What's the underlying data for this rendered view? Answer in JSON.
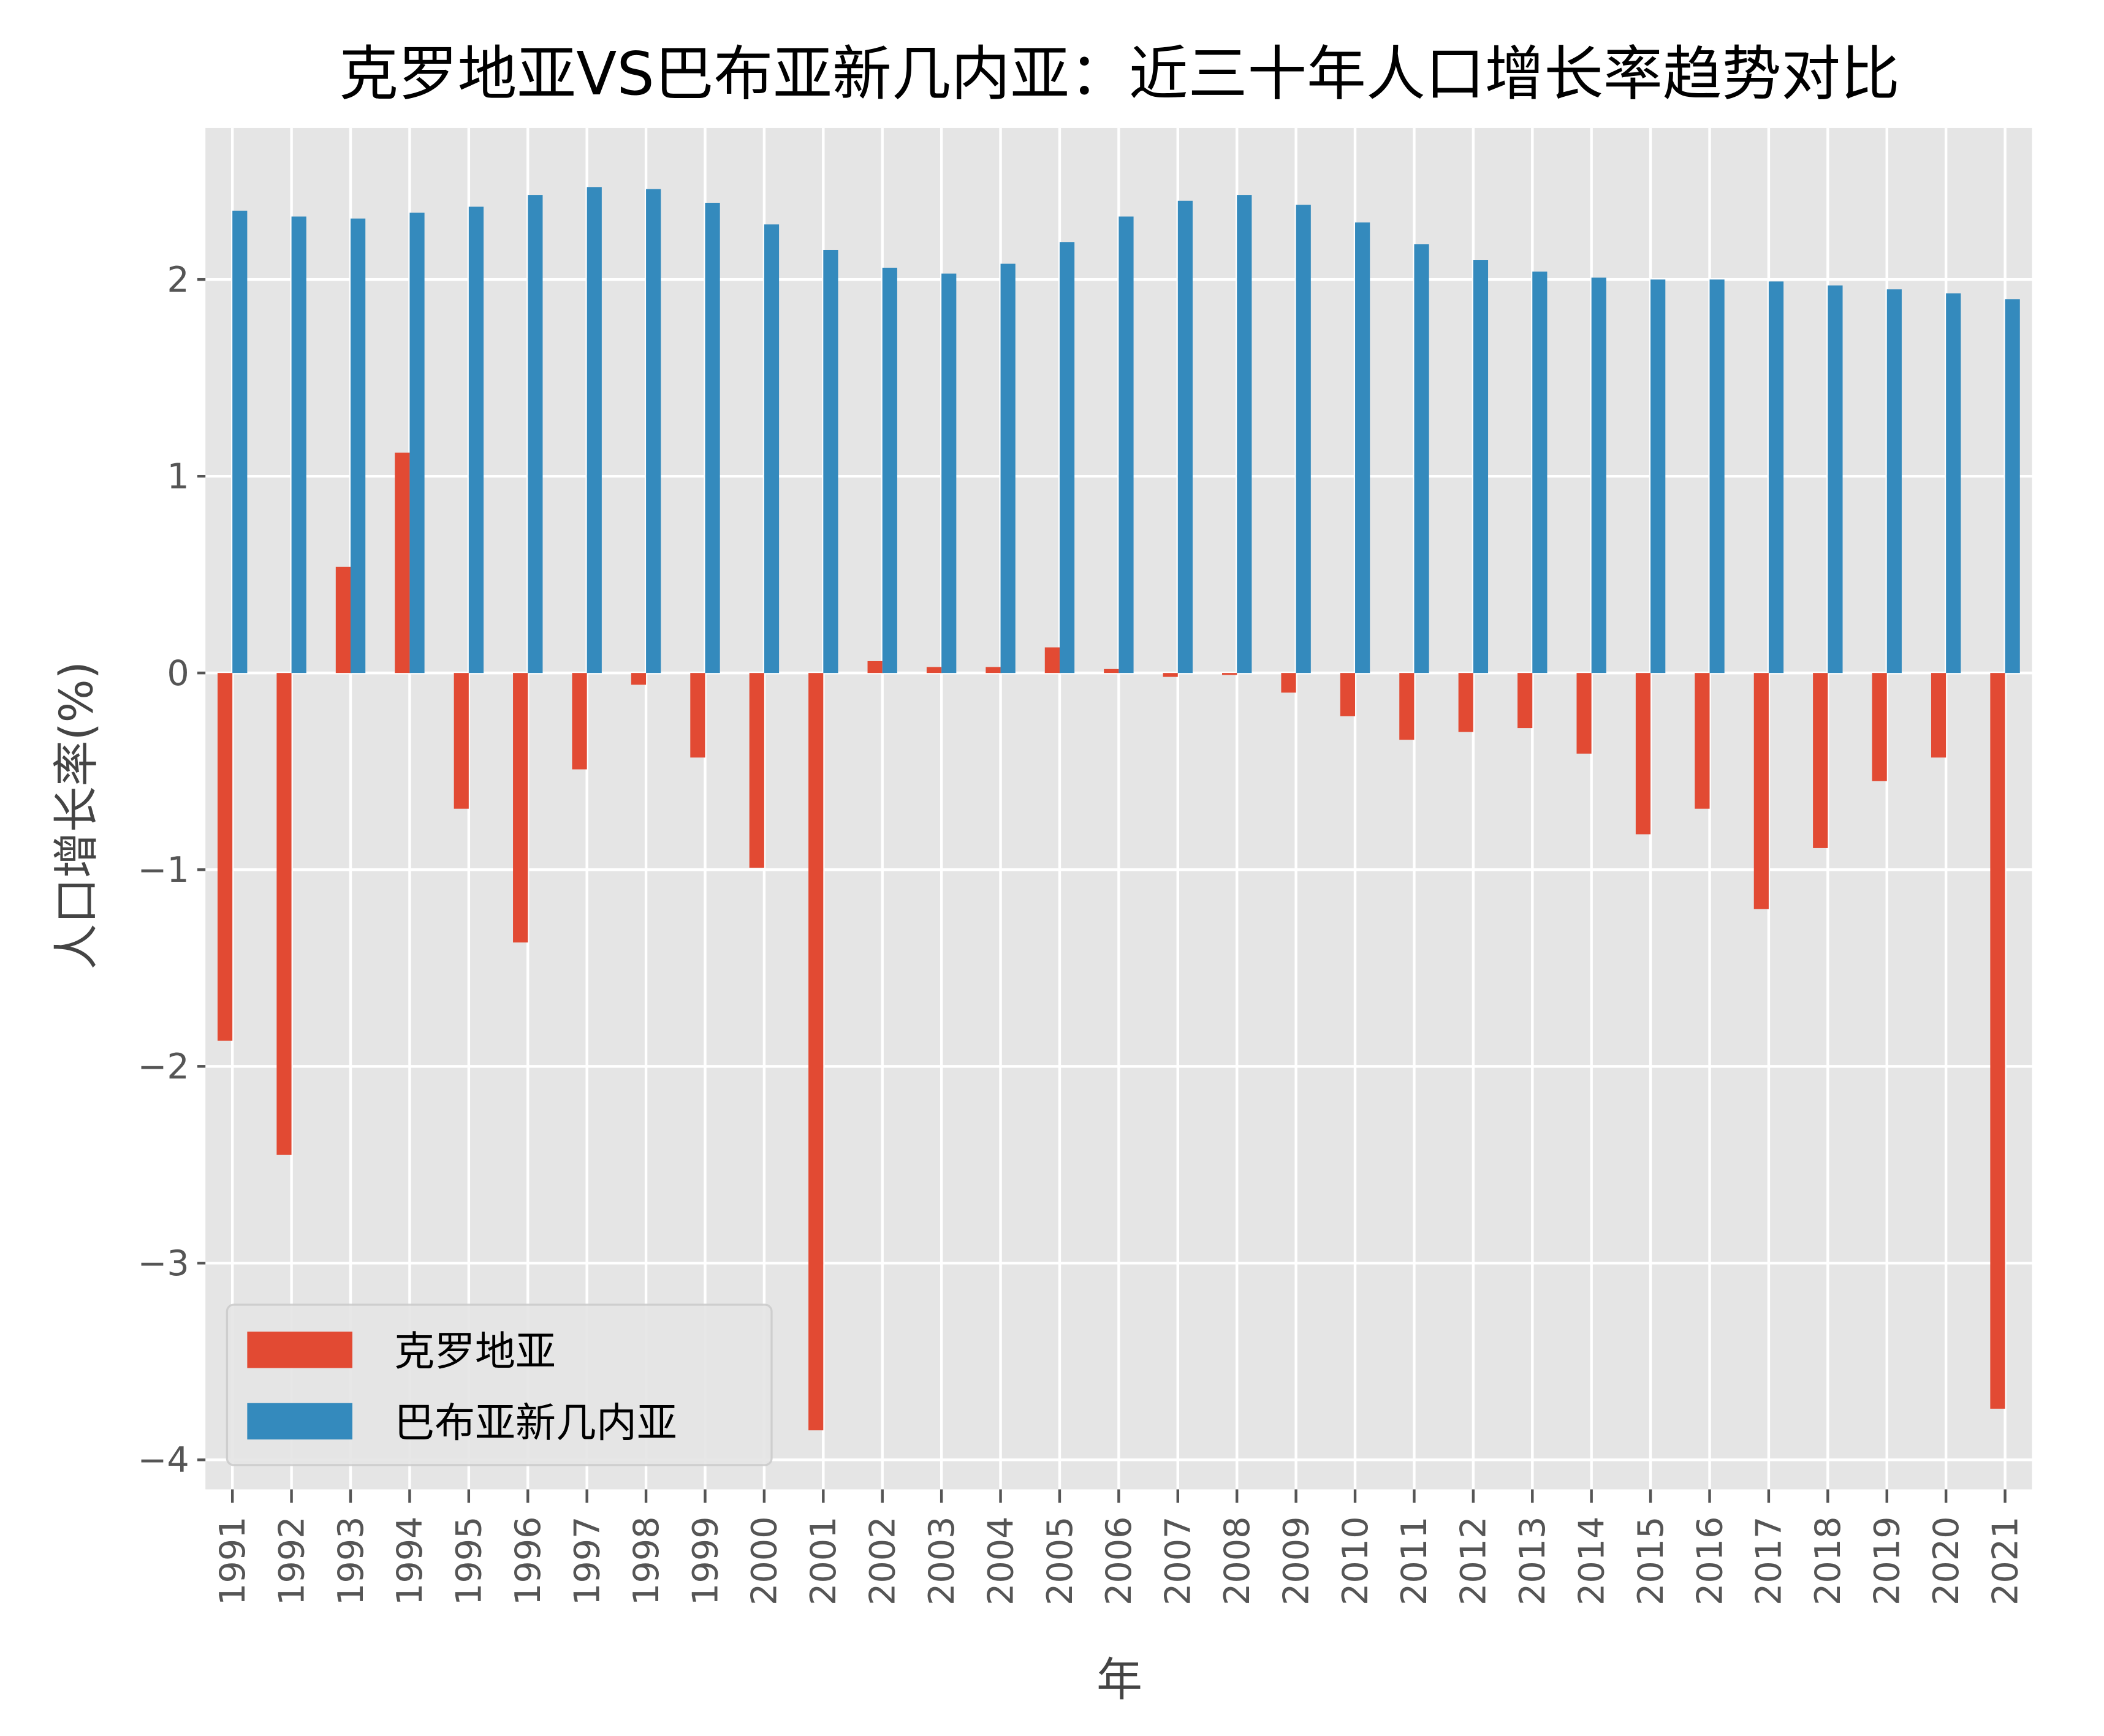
{
  "chart_data": {
    "type": "bar",
    "title": "克罗地亚VS巴布亚新几内亚：近三十年人口增长率趋势对比",
    "xlabel": "年",
    "ylabel": "人口增长率(%)",
    "ylim": [
      -4.15,
      2.77
    ],
    "yticks": [
      -4,
      -3,
      -2,
      -1,
      0,
      1,
      2
    ],
    "grid": true,
    "legend_position": "bottom-left",
    "categories": [
      "1991",
      "1992",
      "1993",
      "1994",
      "1995",
      "1996",
      "1997",
      "1998",
      "1999",
      "2000",
      "2001",
      "2002",
      "2003",
      "2004",
      "2005",
      "2006",
      "2007",
      "2008",
      "2009",
      "2010",
      "2011",
      "2012",
      "2013",
      "2014",
      "2015",
      "2016",
      "2017",
      "2018",
      "2019",
      "2020",
      "2021"
    ],
    "series": [
      {
        "name": "克罗地亚",
        "color": "#E24A33",
        "values": [
          -1.87,
          -2.45,
          0.54,
          1.12,
          -0.69,
          -1.37,
          -0.49,
          -0.06,
          -0.43,
          -0.99,
          -3.85,
          0.06,
          0.03,
          0.03,
          0.13,
          0.02,
          -0.02,
          -0.01,
          -0.1,
          -0.22,
          -0.34,
          -0.3,
          -0.28,
          -0.41,
          -0.82,
          -0.69,
          -1.2,
          -0.89,
          -0.55,
          -0.43,
          -3.74
        ]
      },
      {
        "name": "巴布亚新几内亚",
        "color": "#348ABD",
        "values": [
          2.35,
          2.32,
          2.31,
          2.34,
          2.37,
          2.43,
          2.47,
          2.46,
          2.39,
          2.28,
          2.15,
          2.06,
          2.03,
          2.08,
          2.19,
          2.32,
          2.4,
          2.43,
          2.38,
          2.29,
          2.18,
          2.1,
          2.04,
          2.01,
          2.0,
          2.0,
          1.99,
          1.97,
          1.95,
          1.93,
          1.9
        ]
      }
    ]
  }
}
